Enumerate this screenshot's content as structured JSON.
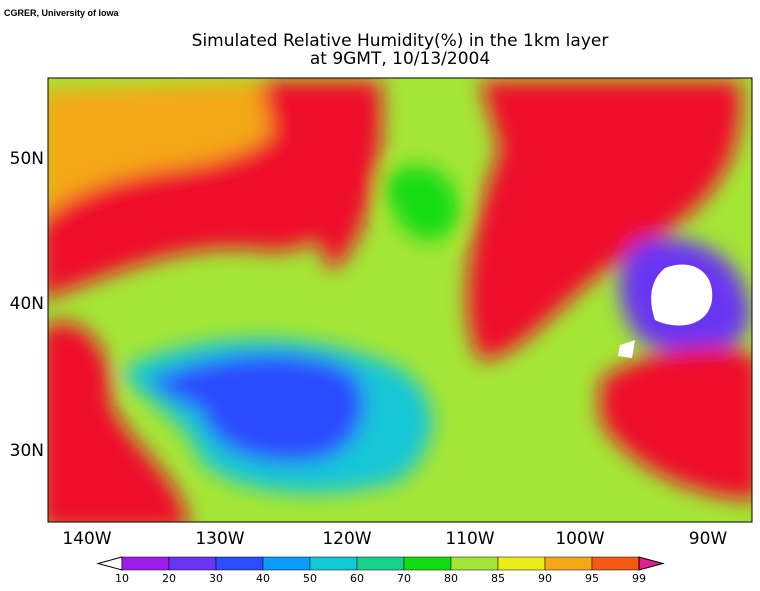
{
  "credit": "CGRER, University of Iowa",
  "title": [
    "Simulated Relative Humidity(%) in the 1km layer",
    "at 9GMT, 10/13/2004"
  ],
  "longitude_labels": [
    "140W",
    "130W",
    "120W",
    "110W",
    "100W",
    "90W"
  ],
  "latitude_labels": [
    "50N",
    "40N",
    "30N"
  ],
  "colorbar": {
    "levels": [
      10,
      20,
      30,
      40,
      50,
      60,
      70,
      80,
      85,
      90,
      95,
      99
    ],
    "colors": [
      "#ffffff",
      "#9c1de8",
      "#6b34f2",
      "#2b4cff",
      "#0c9cff",
      "#12c7d6",
      "#18d28a",
      "#12dc12",
      "#a4e636",
      "#ecec18",
      "#f4a818",
      "#f45a14",
      "#ee0c2c",
      "#e0208c"
    ]
  }
}
